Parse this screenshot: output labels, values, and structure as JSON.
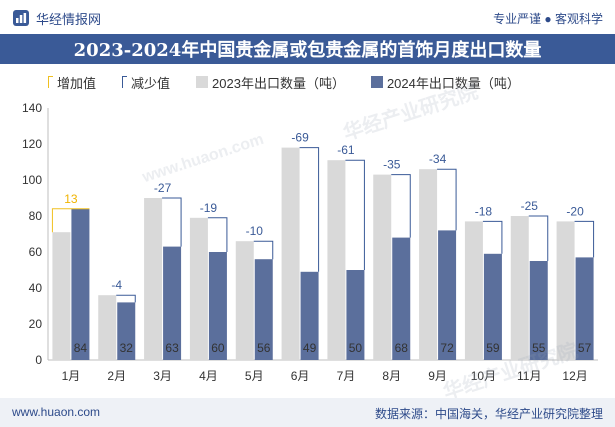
{
  "header": {
    "brand": "华经情报网",
    "tagline": "专业严谨 ● 客观科学"
  },
  "watermarks": [
    "华经产业研究院",
    "www.huaon.com"
  ],
  "legend": {
    "increase": "增加值",
    "decrease": "减少值",
    "series_2023": "2023年出口数量（吨）",
    "series_2024": "2024年出口数量（吨）"
  },
  "footer": {
    "website": "www.huaon.com",
    "source": "数据来源：中国海关，华经产业研究院整理"
  },
  "colors": {
    "title_band": "#3a5a97",
    "bar_2023": "#d9d9d9",
    "bar_2024": "#5b6f9c",
    "increase": "#f0c020",
    "decrease": "#3a5a97",
    "increase_label": "#f0b400",
    "decrease_label": "#3a5a97"
  },
  "chart_data": {
    "type": "bar",
    "title": "2023-2024年中国贵金属或包贵金属的首饰月度出口数量",
    "categories": [
      "1月",
      "2月",
      "3月",
      "4月",
      "5月",
      "6月",
      "7月",
      "8月",
      "9月",
      "10月",
      "11月",
      "12月"
    ],
    "series": [
      {
        "name": "2023年出口数量（吨）",
        "values": [
          71,
          36,
          90,
          79,
          66,
          118,
          111,
          103,
          106,
          77,
          80,
          77
        ]
      },
      {
        "name": "2024年出口数量（吨）",
        "values": [
          84,
          32,
          63,
          60,
          56,
          49,
          50,
          68,
          72,
          59,
          55,
          57
        ]
      }
    ],
    "change": [
      13,
      -4,
      -27,
      -19,
      -10,
      -69,
      -61,
      -35,
      -34,
      -18,
      -25,
      -20
    ],
    "change_labels": [
      "增加值",
      "减少值"
    ],
    "yticks": [
      0,
      20,
      40,
      60,
      80,
      100,
      120,
      140
    ],
    "ylim": [
      0,
      140
    ],
    "grid": false,
    "legend_position": "top-left"
  }
}
